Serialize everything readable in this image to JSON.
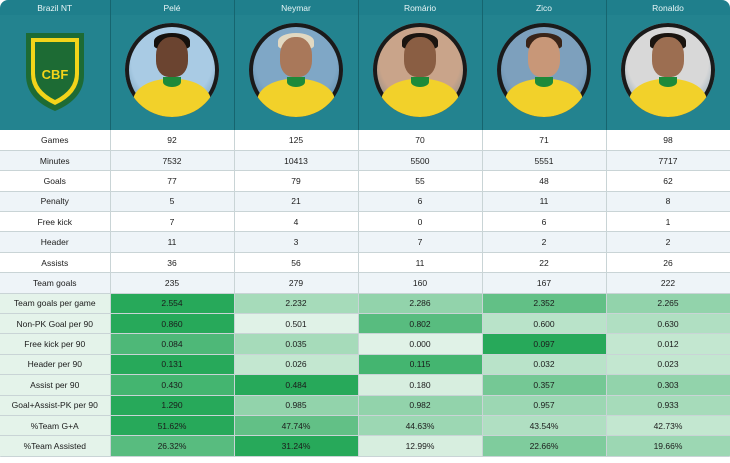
{
  "header": {
    "corner_label": "Brazil NT",
    "players": [
      "Pelé",
      "Neymar",
      "Romário",
      "Zico",
      "Ronaldo"
    ]
  },
  "crest": {
    "text": "CBF",
    "colors": {
      "outer": "#1d6b34",
      "inner": "#f3d41a",
      "field": "#2a5fb3"
    }
  },
  "portraits": [
    {
      "name": "Pelé",
      "skin": "#6b4430",
      "hair": "#15100c",
      "bg": "#a9cbe4"
    },
    {
      "name": "Neymar",
      "skin": "#a9785a",
      "hair": "#e2d9c2",
      "bg": "#7fa7c6"
    },
    {
      "name": "Romário",
      "skin": "#8a5e43",
      "hair": "#1a140f",
      "bg": "#c9a48a"
    },
    {
      "name": "Zico",
      "skin": "#c89778",
      "hair": "#3a2418",
      "bg": "#7da0bd"
    },
    {
      "name": "Ronaldo",
      "skin": "#9c6e51",
      "hair": "#1a140f",
      "bg": "#d8d8d8"
    }
  ],
  "chart_data": {
    "type": "table",
    "columns": [
      "Brazil NT",
      "Pelé",
      "Neymar",
      "Romário",
      "Zico",
      "Ronaldo"
    ],
    "rows": [
      {
        "label": "Games",
        "values": [
          "92",
          "125",
          "70",
          "71",
          "98"
        ],
        "shade": [
          null,
          null,
          null,
          null,
          null
        ]
      },
      {
        "label": "Minutes",
        "values": [
          "7532",
          "10413",
          "5500",
          "5551",
          "7717"
        ],
        "shade": [
          null,
          null,
          null,
          null,
          null
        ]
      },
      {
        "label": "Goals",
        "values": [
          "77",
          "79",
          "55",
          "48",
          "62"
        ],
        "shade": [
          null,
          null,
          null,
          null,
          null
        ]
      },
      {
        "label": "Penalty",
        "values": [
          "5",
          "21",
          "6",
          "11",
          "8"
        ],
        "shade": [
          null,
          null,
          null,
          null,
          null
        ]
      },
      {
        "label": "Free kick",
        "values": [
          "7",
          "4",
          "0",
          "6",
          "1"
        ],
        "shade": [
          null,
          null,
          null,
          null,
          null
        ]
      },
      {
        "label": "Header",
        "values": [
          "11",
          "3",
          "7",
          "2",
          "2"
        ],
        "shade": [
          null,
          null,
          null,
          null,
          null
        ]
      },
      {
        "label": "Assists",
        "values": [
          "36",
          "56",
          "11",
          "22",
          "26"
        ],
        "shade": [
          null,
          null,
          null,
          null,
          null
        ]
      },
      {
        "label": "Team goals",
        "values": [
          "235",
          "279",
          "160",
          "167",
          "222"
        ],
        "shade": [
          null,
          null,
          null,
          null,
          null
        ]
      },
      {
        "label": "Team goals per game",
        "values": [
          "2.554",
          "2.232",
          "2.286",
          "2.352",
          "2.265"
        ],
        "shade": [
          1.0,
          0.35,
          0.45,
          0.7,
          0.45
        ]
      },
      {
        "label": "Non-PK Goal per 90",
        "values": [
          "0.860",
          "0.501",
          "0.802",
          "0.600",
          "0.630"
        ],
        "shade": [
          1.0,
          0.05,
          0.75,
          0.25,
          0.3
        ]
      },
      {
        "label": "Free kick per 90",
        "values": [
          "0.084",
          "0.035",
          "0.000",
          "0.097",
          "0.012"
        ],
        "shade": [
          0.8,
          0.35,
          0.05,
          1.0,
          0.2
        ]
      },
      {
        "label": "Header per 90",
        "values": [
          "0.131",
          "0.026",
          "0.115",
          "0.032",
          "0.023"
        ],
        "shade": [
          1.0,
          0.2,
          0.85,
          0.25,
          0.2
        ]
      },
      {
        "label": "Assist per 90",
        "values": [
          "0.430",
          "0.484",
          "0.180",
          "0.357",
          "0.303"
        ],
        "shade": [
          0.85,
          1.0,
          0.1,
          0.6,
          0.45
        ]
      },
      {
        "label": "Goal+Assist-PK per 90",
        "values": [
          "1.290",
          "0.985",
          "0.982",
          "0.957",
          "0.933"
        ],
        "shade": [
          1.0,
          0.45,
          0.45,
          0.4,
          0.35
        ]
      },
      {
        "label": "%Team G+A",
        "values": [
          "51.62%",
          "47.74%",
          "44.63%",
          "43.54%",
          "42.73%"
        ],
        "shade": [
          1.0,
          0.7,
          0.4,
          0.3,
          0.2
        ]
      },
      {
        "label": "%Team Assisted",
        "values": [
          "26.32%",
          "31.24%",
          "12.99%",
          "22.66%",
          "19.66%"
        ],
        "shade": [
          0.75,
          1.0,
          0.1,
          0.55,
          0.4
        ]
      }
    ],
    "scale_colors": {
      "low": "#eaf6ee",
      "high": "#27a95a"
    }
  }
}
